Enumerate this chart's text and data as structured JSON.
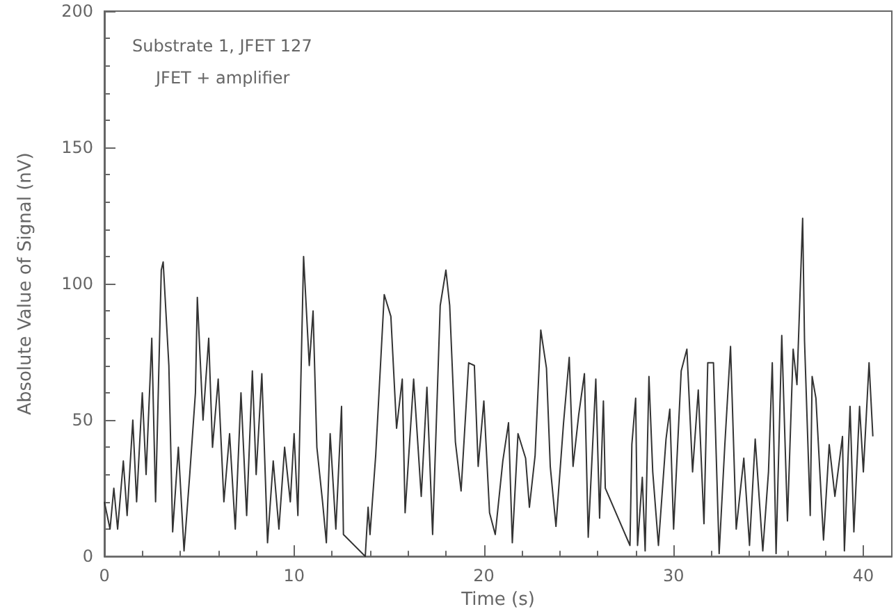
{
  "chart_data": {
    "type": "line",
    "xlabel": "Time (s)",
    "ylabel": "Absolute Value of Signal (nV)",
    "annotations": [
      "Substrate 1, JFET 127",
      "JFET + amplifier"
    ],
    "xlim": [
      0,
      41.5
    ],
    "xticks": [
      0,
      10,
      20,
      30,
      40
    ],
    "ylim": [
      0,
      200
    ],
    "yticks": [
      0,
      50,
      100,
      150,
      200
    ],
    "grid": false,
    "marker": "none",
    "line_style": "solid",
    "series": [
      {
        "color": "#333333",
        "x": [
          0,
          0.3,
          0.5,
          0.7,
          1.0,
          1.2,
          1.5,
          1.7,
          2.0,
          2.2,
          2.5,
          2.7,
          3.0,
          3.1,
          3.4,
          3.6,
          3.9,
          4.2,
          4.5,
          4.8,
          4.9,
          5.2,
          5.5,
          5.7,
          6.0,
          6.3,
          6.6,
          6.9,
          7.2,
          7.5,
          7.8,
          8.0,
          8.3,
          8.6,
          8.9,
          9.2,
          9.5,
          9.8,
          10.0,
          10.2,
          10.5,
          10.8,
          11.0,
          11.2,
          11.5,
          11.7,
          11.9,
          12.2,
          12.5,
          12.6,
          13.75,
          13.9,
          14.0,
          14.3,
          14.75,
          15.1,
          15.4,
          15.7,
          15.85,
          16.3,
          16.7,
          17.0,
          17.3,
          17.7,
          18.0,
          18.2,
          18.5,
          18.8,
          19.2,
          19.5,
          19.7,
          20.0,
          20.3,
          20.6,
          21.0,
          21.3,
          21.5,
          21.8,
          22.2,
          22.4,
          22.7,
          23.0,
          23.3,
          23.5,
          23.8,
          24.2,
          24.5,
          24.7,
          25.0,
          25.3,
          25.5,
          25.9,
          26.1,
          26.3,
          26.4,
          27.7,
          27.8,
          28.0,
          28.1,
          28.35,
          28.5,
          28.7,
          28.9,
          29.2,
          29.6,
          29.8,
          30.0,
          30.4,
          30.7,
          31.0,
          31.3,
          31.6,
          31.8,
          32.1,
          32.4,
          32.7,
          33.0,
          33.3,
          33.7,
          34.0,
          34.3,
          34.7,
          35.0,
          35.2,
          35.4,
          35.7,
          36.0,
          36.3,
          36.5,
          36.8,
          36.9,
          37.2,
          37.3,
          37.5,
          37.9,
          38.2,
          38.5,
          38.9,
          39.0,
          39.3,
          39.5,
          39.8,
          40.0,
          40.3,
          40.5
        ],
        "values": [
          20,
          10,
          25,
          10,
          35,
          15,
          50,
          20,
          60,
          30,
          80,
          20,
          105,
          108,
          70,
          9,
          40,
          2,
          30,
          60,
          95,
          50,
          80,
          40,
          65,
          20,
          45,
          10,
          60,
          15,
          68,
          30,
          67,
          5,
          35,
          10,
          40,
          20,
          45,
          15,
          110,
          70,
          90,
          40,
          20,
          5,
          45,
          10,
          55,
          8,
          0,
          18,
          8,
          37,
          96,
          88,
          47,
          65,
          16,
          65,
          22,
          62,
          8,
          92,
          105,
          92,
          42,
          24,
          71,
          70,
          33,
          57,
          16,
          8,
          35,
          49,
          5,
          45,
          36,
          18,
          37,
          83,
          69,
          33,
          11,
          49,
          73,
          33,
          52,
          67,
          7,
          65,
          14,
          57,
          25,
          4,
          41,
          58,
          4,
          29,
          2,
          66,
          31,
          4,
          43,
          54,
          10,
          68,
          76,
          31,
          61,
          12,
          71,
          71,
          1,
          41,
          77,
          10,
          36,
          4,
          43,
          2,
          31,
          71,
          1,
          81,
          13,
          76,
          63,
          124,
          79,
          15,
          66,
          58,
          6,
          41,
          22,
          44,
          2,
          55,
          9,
          55,
          31,
          71,
          44
        ]
      }
    ]
  }
}
